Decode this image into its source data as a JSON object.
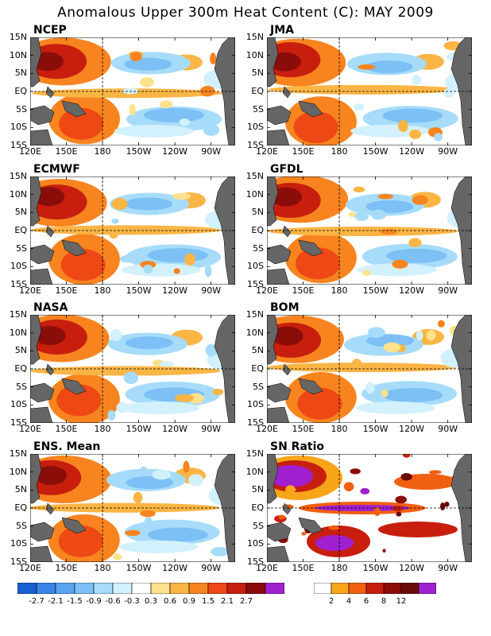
{
  "title": "Anomalous Upper 300m Heat Content (C): MAY 2009",
  "lat_labels": [
    "15N",
    "10N",
    "5N",
    "EQ",
    "5S",
    "10S",
    "15S"
  ],
  "lon_labels": [
    "120E",
    "150E",
    "180",
    "150W",
    "120W",
    "90W"
  ],
  "panels": [
    {
      "name": "NCEP"
    },
    {
      "name": "JMA"
    },
    {
      "name": "ECMWF"
    },
    {
      "name": "GFDL"
    },
    {
      "name": "NASA"
    },
    {
      "name": "BOM"
    },
    {
      "name": "ENS. Mean"
    },
    {
      "name": "SN Ratio"
    }
  ],
  "colorbar_anomaly": {
    "colors": [
      "#1a5fd0",
      "#3a84e6",
      "#5aa3ef",
      "#7cc0f5",
      "#a6dcfa",
      "#d2f1fc",
      "#ffffff",
      "#fde28c",
      "#fbb545",
      "#f7841f",
      "#ee4814",
      "#c81e0e",
      "#8b0d0a",
      "#a020d0"
    ],
    "labels": [
      "-2.7",
      "-2.1",
      "-1.5",
      "-0.9",
      "-0.6",
      "-0.3",
      "0.3",
      "0.6",
      "0.9",
      "1.5",
      "2.1",
      "2.7"
    ]
  },
  "colorbar_sn": {
    "colors": [
      "#ffffff",
      "#f9a51a",
      "#f06010",
      "#c81e0e",
      "#8b0d0a",
      "#6a0a08",
      "#a020d0"
    ],
    "labels": [
      "2",
      "4",
      "6",
      "8",
      "12"
    ]
  }
}
